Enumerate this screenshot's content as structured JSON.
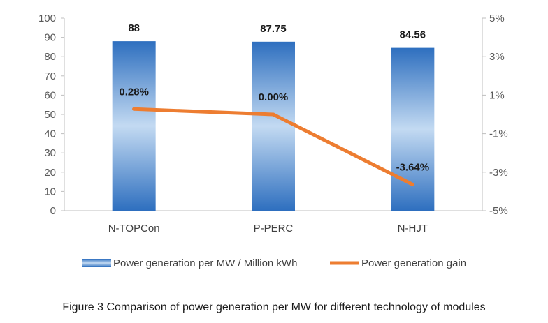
{
  "chart_data": {
    "type": "bar",
    "categories": [
      "N-TOPCon",
      "P-PERC",
      "N-HJT"
    ],
    "series": [
      {
        "name": "Power generation per MW / Million kWh",
        "type": "bar",
        "axis": "left",
        "values": [
          88,
          87.75,
          84.56
        ],
        "labels": [
          "88",
          "87.75",
          "84.56"
        ],
        "color": "#2e6fbf"
      },
      {
        "name": "Power generation gain",
        "type": "line",
        "axis": "right",
        "values": [
          0.28,
          0.0,
          -3.64
        ],
        "labels": [
          "0.28%",
          "0.00%",
          "-3.64%"
        ],
        "color": "#ed7d31"
      }
    ],
    "y_left": {
      "ylim": [
        0,
        100
      ],
      "ticks": [
        0,
        10,
        20,
        30,
        40,
        50,
        60,
        70,
        80,
        90,
        100
      ],
      "tick_labels": [
        "0",
        "10",
        "20",
        "30",
        "40",
        "50",
        "60",
        "70",
        "80",
        "90",
        "100"
      ]
    },
    "y_right": {
      "ylim": [
        -5,
        5
      ],
      "ticks": [
        -5,
        -3,
        -1,
        1,
        3,
        5
      ],
      "tick_labels": [
        "-5%",
        "-3%",
        "-1%",
        "1%",
        "3%",
        "5%"
      ]
    },
    "title": "",
    "xlabel": "",
    "ylabel": "",
    "grid": false,
    "legend": "bottom"
  },
  "caption": "Figure 3 Comparison of power generation per MW for different technology of modules"
}
